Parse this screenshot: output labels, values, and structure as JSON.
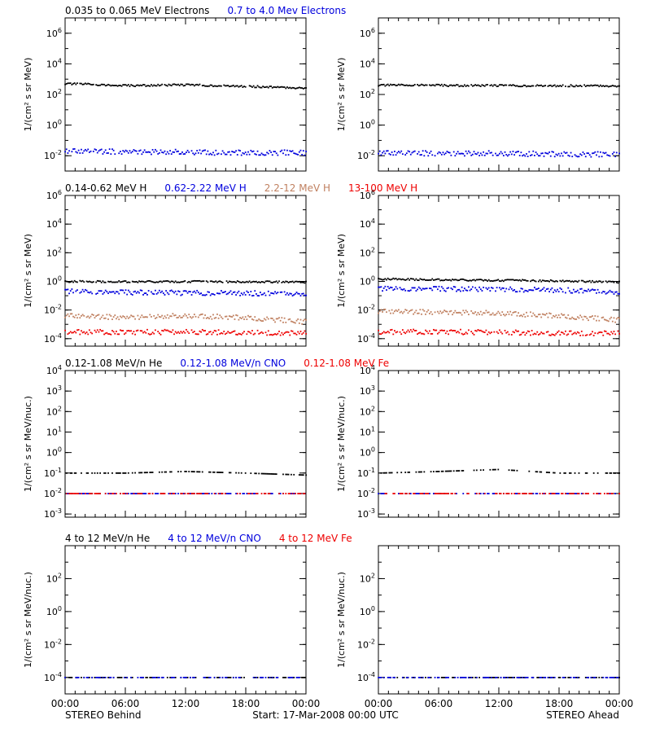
{
  "chart_data": [
    {
      "type": "scatter",
      "scale": "log",
      "ylabel": "1/(cm² s sr MeV)",
      "ylim": [
        0.001,
        10000000
      ],
      "yticks": [
        0.01,
        1,
        100,
        10000,
        1000000
      ],
      "titles": [
        {
          "text": "0.035 to 0.065 MeV Electrons",
          "color": "#000000"
        },
        {
          "text": "0.7 to 4.0 Mev Electrons",
          "color": "#0000dd"
        }
      ],
      "series": [
        {
          "name": "0.035 to 0.065 MeV Electrons",
          "color": "#000000",
          "behind": {
            "x": [
              0,
              2,
              4,
              5,
              8,
              10,
              12,
              14,
              16,
              18,
              20,
              22,
              24
            ],
            "y": [
              500,
              480,
              420,
              380,
              390,
              410,
              430,
              400,
              360,
              340,
              320,
              280,
              270
            ]
          },
          "ahead": {
            "x": [
              0,
              4,
              8,
              12,
              16,
              20,
              24
            ],
            "y": [
              400,
              420,
              380,
              390,
              370,
              380,
              360
            ]
          }
        },
        {
          "name": "0.7 to 4.0 Mev Electrons",
          "color": "#0000dd",
          "behind": {
            "x": [
              0,
              6,
              12,
              18,
              24
            ],
            "y": [
              0.02,
              0.018,
              0.017,
              0.016,
              0.016
            ]
          },
          "ahead": {
            "x": [
              0,
              6,
              12,
              18,
              24
            ],
            "y": [
              0.015,
              0.014,
              0.014,
              0.013,
              0.012
            ]
          }
        }
      ]
    },
    {
      "type": "scatter",
      "scale": "log",
      "ylabel": "1/(cm² s sr MeV)",
      "ylim": [
        3e-05,
        1000000
      ],
      "yticks": [
        0.0001,
        0.01,
        1,
        100,
        10000,
        1000000
      ],
      "titles": [
        {
          "text": "0.14-0.62 MeV H",
          "color": "#000000"
        },
        {
          "text": "0.62-2.22 MeV H",
          "color": "#0000dd"
        },
        {
          "text": "2.2-12 MeV H",
          "color": "#c08060"
        },
        {
          "text": "13-100 MeV H",
          "color": "#ee0000"
        }
      ],
      "series": [
        {
          "name": "0.14-0.62 MeV H",
          "color": "#000000",
          "behind": {
            "x": [
              0,
              6,
              12,
              18,
              24
            ],
            "y": [
              1.0,
              0.95,
              0.98,
              0.95,
              0.9
            ]
          },
          "ahead": {
            "x": [
              0,
              6,
              12,
              18,
              24
            ],
            "y": [
              1.5,
              1.3,
              1.2,
              1.1,
              0.9
            ]
          }
        },
        {
          "name": "0.62-2.22 MeV H",
          "color": "#0000dd",
          "behind": {
            "x": [
              0,
              6,
              12,
              18,
              24
            ],
            "y": [
              0.2,
              0.17,
              0.16,
              0.15,
              0.14
            ]
          },
          "ahead": {
            "x": [
              0,
              6,
              12,
              18,
              24
            ],
            "y": [
              0.3,
              0.3,
              0.28,
              0.25,
              0.18
            ]
          }
        },
        {
          "name": "2.2-12 MeV H",
          "color": "#c08060",
          "behind": {
            "x": [
              0,
              6,
              12,
              18,
              24
            ],
            "y": [
              0.004,
              0.003,
              0.004,
              0.003,
              0.0015
            ]
          },
          "ahead": {
            "x": [
              0,
              6,
              12,
              18,
              24
            ],
            "y": [
              0.008,
              0.007,
              0.006,
              0.004,
              0.002
            ]
          }
        },
        {
          "name": "13-100 MeV H",
          "color": "#ee0000",
          "behind": {
            "x": [
              0,
              6,
              12,
              18,
              24
            ],
            "y": [
              0.0003,
              0.00028,
              0.0003,
              0.00028,
              0.00025
            ]
          },
          "ahead": {
            "x": [
              0,
              6,
              12,
              18,
              24
            ],
            "y": [
              0.0003,
              0.0003,
              0.00028,
              0.00025,
              0.00025
            ]
          }
        }
      ]
    },
    {
      "type": "scatter",
      "scale": "log",
      "ylabel": "1/(cm² s sr MeV/nuc.)",
      "ylim": [
        0.0007,
        10000
      ],
      "yticks": [
        0.001,
        0.01,
        0.1,
        1,
        10,
        100,
        1000,
        10000
      ],
      "titles": [
        {
          "text": "0.12-1.08 MeV/n He",
          "color": "#000000"
        },
        {
          "text": "0.12-1.08 MeV/n CNO",
          "color": "#0000dd"
        },
        {
          "text": "0.12-1.08 MeV Fe",
          "color": "#ee0000"
        }
      ],
      "series": [
        {
          "name": "0.12-1.08 MeV/n He",
          "color": "#000000",
          "behind": {
            "x": [
              0,
              6,
              12,
              18,
              24
            ],
            "y": [
              0.1,
              0.1,
              0.12,
              0.1,
              0.08
            ]
          },
          "ahead": {
            "x": [
              0,
              6,
              12,
              18,
              24
            ],
            "y": [
              0.1,
              0.12,
              0.15,
              0.1,
              0.1
            ]
          }
        },
        {
          "name": "0.12-1.08 MeV/n CNO",
          "color": "#0000dd",
          "behind": {
            "x": [
              0,
              6,
              12,
              18,
              24
            ],
            "y": [
              0.01,
              0.01,
              0.01,
              0.01,
              0.01
            ]
          },
          "ahead": {
            "x": [
              0,
              6,
              12,
              18,
              24
            ],
            "y": [
              0.01,
              0.01,
              0.01,
              0.01,
              0.01
            ]
          }
        },
        {
          "name": "0.12-1.08 MeV Fe",
          "color": "#ee0000",
          "behind": {
            "x": [
              0,
              6,
              12,
              18,
              24
            ],
            "y": [
              0.01,
              0.01,
              0.01,
              0.01,
              0.01
            ]
          },
          "ahead": {
            "x": [
              0,
              6,
              12,
              18,
              24
            ],
            "y": [
              0.01,
              0.01,
              0.01,
              0.01,
              0.01
            ]
          }
        }
      ]
    },
    {
      "type": "scatter",
      "scale": "log",
      "ylabel": "1/(cm² s sr MeV/nuc.)",
      "ylim": [
        1e-05,
        10000
      ],
      "yticks": [
        0.0001,
        0.01,
        1,
        100
      ],
      "titles": [
        {
          "text": "4 to 12 MeV/n He",
          "color": "#000000"
        },
        {
          "text": "4 to 12 MeV/n CNO",
          "color": "#0000dd"
        },
        {
          "text": "4 to 12 MeV Fe",
          "color": "#ee0000"
        }
      ],
      "series": [
        {
          "name": "4 to 12 MeV/n He",
          "color": "#000000",
          "behind": {
            "x": [
              0,
              6,
              12,
              18,
              24
            ],
            "y": [
              0.0001,
              0.0001,
              0.0001,
              0.0001,
              0.0001
            ]
          },
          "ahead": {
            "x": [
              0,
              6,
              12,
              18,
              24
            ],
            "y": [
              0.0001,
              0.0001,
              0.0001,
              0.0001,
              0.0001
            ]
          }
        },
        {
          "name": "4 to 12 MeV/n CNO",
          "color": "#0000dd",
          "behind": {
            "x": [
              0,
              24
            ],
            "y": [
              0.0001,
              0.0001
            ]
          },
          "ahead": {
            "x": [
              0,
              24
            ],
            "y": [
              0.0001,
              0.0001
            ]
          }
        }
      ]
    }
  ],
  "x_axis": {
    "min_hours": 0,
    "max_hours": 24,
    "ticks": [
      0,
      6,
      12,
      18,
      24
    ],
    "tick_labels": [
      "00:00",
      "06:00",
      "12:00",
      "18:00",
      "00:00"
    ]
  },
  "footer": {
    "left": "STEREO Behind",
    "center": "Start: 17-Mar-2008 00:00 UTC",
    "right": "STEREO Ahead"
  }
}
